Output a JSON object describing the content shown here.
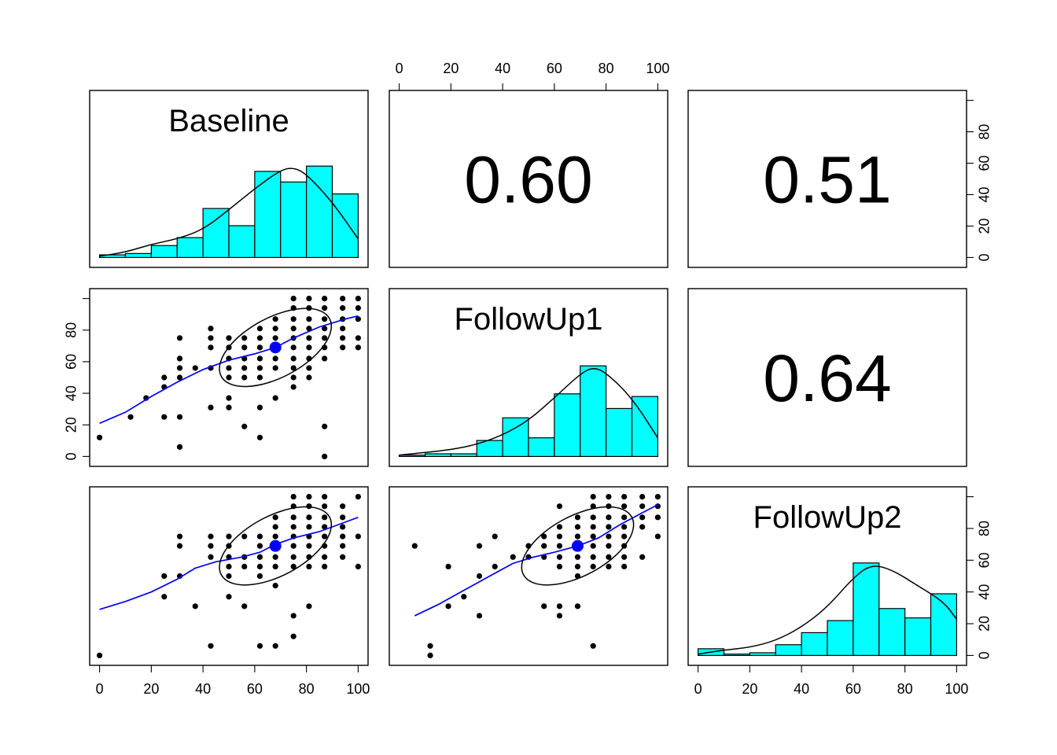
{
  "chart_data": {
    "type": "scatter",
    "variables": [
      "Baseline",
      "FollowUp1",
      "FollowUp2"
    ],
    "axis_range": [
      0,
      100
    ],
    "axis_ticks": [
      0,
      20,
      40,
      60,
      80,
      100
    ],
    "axis_tick_labels": [
      "0",
      "20",
      "40",
      "60",
      "80",
      "100"
    ],
    "correlations": [
      {
        "row": 0,
        "col": 1,
        "label": "0.60"
      },
      {
        "row": 0,
        "col": 2,
        "label": "0.51"
      },
      {
        "row": 1,
        "col": 2,
        "label": "0.64"
      }
    ],
    "colors": {
      "histogram": "#00ffff",
      "point": "#000000",
      "loess": "#0000ff",
      "mean_point": "#0000ff",
      "ellipse": "#000000"
    },
    "histograms": [
      {
        "variable": "Baseline",
        "bin_edges": [
          0,
          10,
          20,
          30,
          40,
          50,
          60,
          70,
          80,
          90,
          100
        ],
        "counts": [
          2,
          3,
          9,
          15,
          37,
          24,
          65,
          57,
          69,
          48
        ],
        "density_y": [
          [
            0,
            1
          ],
          [
            10,
            4
          ],
          [
            20,
            10
          ],
          [
            30,
            14
          ],
          [
            40,
            21
          ],
          [
            50,
            36
          ],
          [
            60,
            52
          ],
          [
            70,
            66
          ],
          [
            75,
            68
          ],
          [
            80,
            63
          ],
          [
            90,
            42
          ],
          [
            100,
            14
          ]
        ]
      },
      {
        "variable": "FollowUp1",
        "bin_edges": [
          0,
          10,
          20,
          30,
          40,
          50,
          60,
          70,
          80,
          90,
          100
        ],
        "counts": [
          1,
          2,
          2,
          12,
          29,
          14,
          47,
          68,
          36,
          45
        ],
        "density_y": [
          [
            0,
            1
          ],
          [
            10,
            3
          ],
          [
            20,
            5
          ],
          [
            30,
            9
          ],
          [
            40,
            16
          ],
          [
            50,
            27
          ],
          [
            60,
            44
          ],
          [
            70,
            62
          ],
          [
            75,
            67
          ],
          [
            80,
            63
          ],
          [
            90,
            44
          ],
          [
            100,
            14
          ]
        ]
      },
      {
        "variable": "FollowUp2",
        "bin_edges": [
          0,
          10,
          20,
          30,
          40,
          50,
          60,
          70,
          80,
          90,
          100
        ],
        "counts": [
          5,
          1,
          2,
          8,
          17,
          26,
          69,
          35,
          28,
          46
        ],
        "density_y": [
          [
            0,
            1
          ],
          [
            10,
            4
          ],
          [
            20,
            6
          ],
          [
            30,
            11
          ],
          [
            40,
            21
          ],
          [
            50,
            36
          ],
          [
            60,
            58
          ],
          [
            67,
            68
          ],
          [
            75,
            64
          ],
          [
            85,
            52
          ],
          [
            95,
            40
          ],
          [
            100,
            27
          ]
        ]
      }
    ],
    "scatter": {
      "Baseline_FollowUp1": [
        [
          0,
          12
        ],
        [
          12,
          25
        ],
        [
          18,
          37
        ],
        [
          25,
          25
        ],
        [
          25,
          44
        ],
        [
          25,
          50
        ],
        [
          31,
          6
        ],
        [
          31,
          25
        ],
        [
          31,
          50
        ],
        [
          31,
          56
        ],
        [
          31,
          62
        ],
        [
          31,
          75
        ],
        [
          37,
          56
        ],
        [
          43,
          31
        ],
        [
          43,
          56
        ],
        [
          43,
          69
        ],
        [
          43,
          75
        ],
        [
          43,
          81
        ],
        [
          50,
          31
        ],
        [
          50,
          37
        ],
        [
          50,
          50
        ],
        [
          50,
          56
        ],
        [
          50,
          62
        ],
        [
          50,
          69
        ],
        [
          50,
          75
        ],
        [
          56,
          19
        ],
        [
          56,
          50
        ],
        [
          56,
          56
        ],
        [
          56,
          62
        ],
        [
          56,
          69
        ],
        [
          56,
          75
        ],
        [
          62,
          12
        ],
        [
          62,
          31
        ],
        [
          62,
          50
        ],
        [
          62,
          56
        ],
        [
          62,
          62
        ],
        [
          62,
          69
        ],
        [
          62,
          75
        ],
        [
          62,
          81
        ],
        [
          68,
          37
        ],
        [
          68,
          56
        ],
        [
          68,
          62
        ],
        [
          68,
          69
        ],
        [
          68,
          75
        ],
        [
          68,
          81
        ],
        [
          68,
          87
        ],
        [
          75,
          44
        ],
        [
          75,
          50
        ],
        [
          75,
          56
        ],
        [
          75,
          62
        ],
        [
          75,
          69
        ],
        [
          75,
          75
        ],
        [
          75,
          81
        ],
        [
          75,
          87
        ],
        [
          75,
          94
        ],
        [
          75,
          100
        ],
        [
          81,
          50
        ],
        [
          81,
          56
        ],
        [
          81,
          62
        ],
        [
          81,
          69
        ],
        [
          81,
          75
        ],
        [
          81,
          81
        ],
        [
          81,
          87
        ],
        [
          81,
          94
        ],
        [
          81,
          100
        ],
        [
          87,
          0
        ],
        [
          87,
          19
        ],
        [
          87,
          62
        ],
        [
          87,
          69
        ],
        [
          87,
          75
        ],
        [
          87,
          81
        ],
        [
          87,
          87
        ],
        [
          87,
          94
        ],
        [
          87,
          100
        ],
        [
          94,
          69
        ],
        [
          94,
          75
        ],
        [
          94,
          81
        ],
        [
          94,
          87
        ],
        [
          94,
          94
        ],
        [
          94,
          100
        ],
        [
          100,
          69
        ],
        [
          100,
          75
        ],
        [
          100,
          87
        ],
        [
          100,
          94
        ],
        [
          100,
          100
        ]
      ],
      "Baseline_FollowUp2": [
        [
          0,
          0
        ],
        [
          25,
          37
        ],
        [
          25,
          50
        ],
        [
          31,
          50
        ],
        [
          31,
          69
        ],
        [
          31,
          75
        ],
        [
          37,
          31
        ],
        [
          43,
          6
        ],
        [
          43,
          62
        ],
        [
          43,
          69
        ],
        [
          43,
          75
        ],
        [
          50,
          37
        ],
        [
          50,
          50
        ],
        [
          50,
          56
        ],
        [
          50,
          62
        ],
        [
          50,
          69
        ],
        [
          50,
          75
        ],
        [
          56,
          31
        ],
        [
          56,
          56
        ],
        [
          56,
          62
        ],
        [
          56,
          75
        ],
        [
          62,
          6
        ],
        [
          62,
          50
        ],
        [
          62,
          56
        ],
        [
          62,
          62
        ],
        [
          62,
          69
        ],
        [
          62,
          75
        ],
        [
          68,
          6
        ],
        [
          68,
          44
        ],
        [
          68,
          56
        ],
        [
          68,
          62
        ],
        [
          68,
          69
        ],
        [
          68,
          75
        ],
        [
          68,
          81
        ],
        [
          68,
          87
        ],
        [
          75,
          12
        ],
        [
          75,
          25
        ],
        [
          75,
          56
        ],
        [
          75,
          62
        ],
        [
          75,
          69
        ],
        [
          75,
          75
        ],
        [
          75,
          81
        ],
        [
          75,
          87
        ],
        [
          75,
          94
        ],
        [
          75,
          100
        ],
        [
          81,
          31
        ],
        [
          81,
          56
        ],
        [
          81,
          62
        ],
        [
          81,
          69
        ],
        [
          81,
          75
        ],
        [
          81,
          81
        ],
        [
          81,
          87
        ],
        [
          81,
          94
        ],
        [
          81,
          100
        ],
        [
          87,
          56
        ],
        [
          87,
          62
        ],
        [
          87,
          69
        ],
        [
          87,
          75
        ],
        [
          87,
          81
        ],
        [
          87,
          87
        ],
        [
          87,
          94
        ],
        [
          87,
          100
        ],
        [
          94,
          62
        ],
        [
          94,
          69
        ],
        [
          94,
          75
        ],
        [
          94,
          81
        ],
        [
          94,
          87
        ],
        [
          94,
          94
        ],
        [
          100,
          56
        ],
        [
          100,
          75
        ],
        [
          100,
          100
        ]
      ],
      "FollowUp1_FollowUp2": [
        [
          6,
          69
        ],
        [
          12,
          0
        ],
        [
          12,
          6
        ],
        [
          19,
          31
        ],
        [
          19,
          56
        ],
        [
          25,
          37
        ],
        [
          31,
          25
        ],
        [
          31,
          50
        ],
        [
          31,
          69
        ],
        [
          37,
          56
        ],
        [
          37,
          75
        ],
        [
          44,
          62
        ],
        [
          50,
          62
        ],
        [
          50,
          69
        ],
        [
          56,
          31
        ],
        [
          56,
          62
        ],
        [
          56,
          69
        ],
        [
          56,
          75
        ],
        [
          62,
          25
        ],
        [
          62,
          31
        ],
        [
          62,
          56
        ],
        [
          62,
          62
        ],
        [
          62,
          69
        ],
        [
          62,
          75
        ],
        [
          62,
          81
        ],
        [
          62,
          94
        ],
        [
          69,
          31
        ],
        [
          69,
          50
        ],
        [
          69,
          56
        ],
        [
          69,
          62
        ],
        [
          69,
          69
        ],
        [
          69,
          75
        ],
        [
          69,
          81
        ],
        [
          69,
          87
        ],
        [
          75,
          6
        ],
        [
          75,
          56
        ],
        [
          75,
          62
        ],
        [
          75,
          69
        ],
        [
          75,
          75
        ],
        [
          75,
          81
        ],
        [
          75,
          87
        ],
        [
          75,
          94
        ],
        [
          75,
          100
        ],
        [
          81,
          56
        ],
        [
          81,
          62
        ],
        [
          81,
          69
        ],
        [
          81,
          75
        ],
        [
          81,
          81
        ],
        [
          81,
          87
        ],
        [
          81,
          94
        ],
        [
          81,
          100
        ],
        [
          87,
          56
        ],
        [
          87,
          62
        ],
        [
          87,
          69
        ],
        [
          87,
          75
        ],
        [
          87,
          81
        ],
        [
          87,
          87
        ],
        [
          87,
          94
        ],
        [
          87,
          100
        ],
        [
          94,
          62
        ],
        [
          94,
          81
        ],
        [
          94,
          87
        ],
        [
          94,
          94
        ],
        [
          94,
          100
        ],
        [
          100,
          75
        ],
        [
          100,
          87
        ],
        [
          100,
          94
        ],
        [
          100,
          100
        ]
      ]
    },
    "loess": {
      "Baseline_FollowUp1": [
        [
          0,
          21
        ],
        [
          10,
          28
        ],
        [
          20,
          38
        ],
        [
          30,
          47
        ],
        [
          40,
          55
        ],
        [
          50,
          61
        ],
        [
          60,
          65
        ],
        [
          68,
          69
        ],
        [
          75,
          75
        ],
        [
          85,
          82
        ],
        [
          95,
          87
        ],
        [
          100,
          89
        ]
      ],
      "Baseline_FollowUp2": [
        [
          0,
          29
        ],
        [
          10,
          34
        ],
        [
          20,
          40
        ],
        [
          30,
          48
        ],
        [
          37,
          55
        ],
        [
          45,
          59
        ],
        [
          55,
          62
        ],
        [
          62,
          65
        ],
        [
          68,
          70
        ],
        [
          75,
          74
        ],
        [
          85,
          78
        ],
        [
          95,
          84
        ],
        [
          100,
          87
        ]
      ],
      "FollowUp1_FollowUp2": [
        [
          6,
          25
        ],
        [
          15,
          32
        ],
        [
          25,
          41
        ],
        [
          35,
          50
        ],
        [
          44,
          58
        ],
        [
          52,
          62
        ],
        [
          60,
          65
        ],
        [
          69,
          69
        ],
        [
          77,
          74
        ],
        [
          85,
          82
        ],
        [
          93,
          89
        ],
        [
          100,
          95
        ]
      ]
    },
    "means": {
      "Baseline_FollowUp1": [
        68,
        69
      ],
      "Baseline_FollowUp2": [
        68,
        69
      ],
      "FollowUp1_FollowUp2": [
        69,
        69
      ]
    }
  }
}
